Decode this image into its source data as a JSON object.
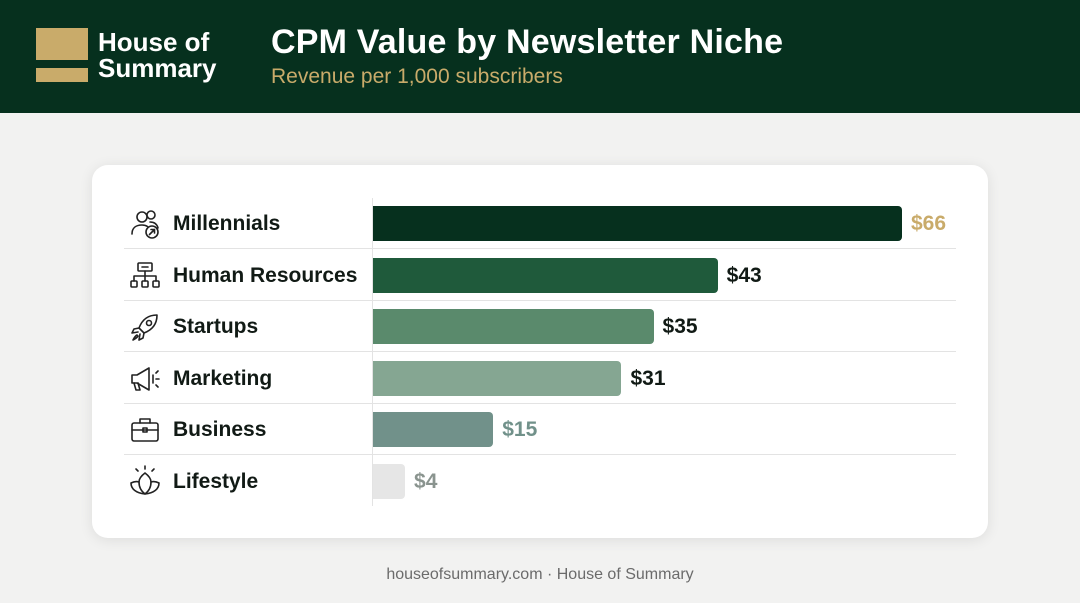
{
  "brand": {
    "line1": "House of",
    "line2": "Summary",
    "logo_color": "#c9ab6a"
  },
  "header": {
    "title": "CPM Value by Newsletter Niche",
    "subtitle": "Revenue per 1,000 subscribers",
    "background": "#06301e"
  },
  "chart_data": {
    "type": "bar",
    "orientation": "horizontal",
    "title": "CPM Value by Newsletter Niche",
    "subtitle": "Revenue per 1,000 subscribers",
    "xlim": [
      0,
      66
    ],
    "grid": false,
    "legend": "none",
    "categories": [
      "Millennials",
      "Human Resources",
      "Startups",
      "Marketing",
      "Business",
      "Lifestyle"
    ],
    "values": [
      66,
      43,
      35,
      31,
      15,
      4
    ],
    "value_labels": [
      "$66",
      "$43",
      "$35",
      "$31",
      "$15",
      "$4"
    ],
    "icons": [
      "users-icon",
      "org-chart-icon",
      "rocket-icon",
      "megaphone-icon",
      "briefcase-icon",
      "lotus-icon"
    ],
    "bar_colors": [
      "#06301e",
      "#1f5a3b",
      "#5a8a6c",
      "#85a692",
      "#71918a",
      "#e6e6e6"
    ],
    "label_colors": [
      "#c9ab6a",
      "#111a15",
      "#111a15",
      "#111a15",
      "#71918a",
      "#8a948f"
    ]
  },
  "footer": {
    "text": "houseofsummary.com · House of Summary"
  }
}
